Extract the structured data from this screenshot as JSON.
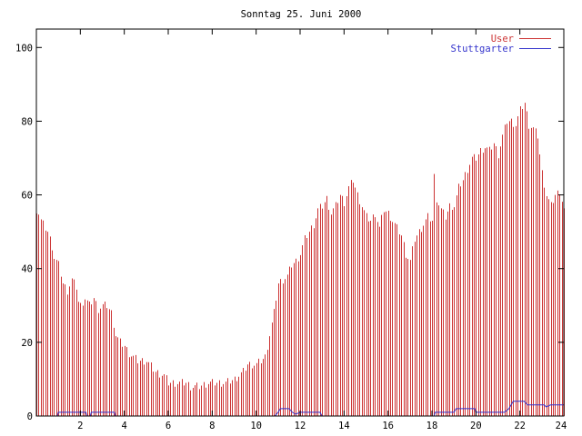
{
  "chart_data": {
    "type": "bar",
    "title": "Sonntag 25. Juni 2000",
    "xlabel": "",
    "ylabel": "",
    "xlim": [
      0,
      24
    ],
    "ylim": [
      0,
      105
    ],
    "x_ticks": [
      2,
      4,
      6,
      8,
      10,
      12,
      14,
      16,
      18,
      20,
      22,
      24
    ],
    "y_ticks": [
      0,
      20,
      40,
      60,
      80,
      100
    ],
    "grid": false,
    "legend_position": "top-right",
    "colors": {
      "User": "#cc3333",
      "Stuttgarter": "#3333cc"
    },
    "series": [
      {
        "name": "User",
        "style": "impulses",
        "step_hours": 0.1,
        "keyframes": [
          [
            0.0,
            56
          ],
          [
            0.1,
            55
          ],
          [
            0.2,
            53
          ],
          [
            0.3,
            52
          ],
          [
            0.4,
            51
          ],
          [
            0.5,
            50
          ],
          [
            0.6,
            48
          ],
          [
            0.7,
            46
          ],
          [
            0.8,
            43
          ],
          [
            0.9,
            42
          ],
          [
            1.0,
            41
          ],
          [
            1.2,
            36
          ],
          [
            1.4,
            34
          ],
          [
            1.6,
            37
          ],
          [
            1.8,
            35
          ],
          [
            1.9,
            31
          ],
          [
            2.0,
            30
          ],
          [
            2.2,
            32
          ],
          [
            2.4,
            30
          ],
          [
            2.6,
            32
          ],
          [
            2.8,
            29
          ],
          [
            3.0,
            30
          ],
          [
            3.2,
            30
          ],
          [
            3.4,
            28
          ],
          [
            3.6,
            22
          ],
          [
            3.8,
            20
          ],
          [
            4.0,
            19
          ],
          [
            4.2,
            17
          ],
          [
            4.4,
            16
          ],
          [
            4.6,
            15
          ],
          [
            5.0,
            15
          ],
          [
            5.4,
            12
          ],
          [
            5.8,
            11
          ],
          [
            6.0,
            9
          ],
          [
            6.4,
            9
          ],
          [
            6.8,
            9
          ],
          [
            7.0,
            8
          ],
          [
            7.4,
            8
          ],
          [
            7.8,
            9
          ],
          [
            8.0,
            9
          ],
          [
            8.6,
            9
          ],
          [
            9.0,
            10
          ],
          [
            9.4,
            12
          ],
          [
            9.6,
            14
          ],
          [
            10.0,
            14
          ],
          [
            10.4,
            16
          ],
          [
            10.6,
            22
          ],
          [
            10.8,
            28
          ],
          [
            11.0,
            36
          ],
          [
            11.2,
            37
          ],
          [
            11.4,
            38
          ],
          [
            11.6,
            41
          ],
          [
            11.8,
            42
          ],
          [
            12.0,
            44
          ],
          [
            12.2,
            48
          ],
          [
            12.4,
            50
          ],
          [
            12.6,
            52
          ],
          [
            12.8,
            56
          ],
          [
            13.0,
            57
          ],
          [
            13.2,
            59
          ],
          [
            13.4,
            55
          ],
          [
            13.6,
            57
          ],
          [
            13.8,
            60
          ],
          [
            14.0,
            58
          ],
          [
            14.2,
            62
          ],
          [
            14.4,
            64
          ],
          [
            14.6,
            60
          ],
          [
            14.8,
            57
          ],
          [
            15.0,
            54
          ],
          [
            15.2,
            53
          ],
          [
            15.4,
            55
          ],
          [
            15.6,
            51
          ],
          [
            15.8,
            56
          ],
          [
            16.0,
            55
          ],
          [
            16.2,
            53
          ],
          [
            16.4,
            51
          ],
          [
            16.6,
            49
          ],
          [
            16.8,
            44
          ],
          [
            17.0,
            42
          ],
          [
            17.2,
            48
          ],
          [
            17.4,
            50
          ],
          [
            17.6,
            52
          ],
          [
            17.8,
            54
          ],
          [
            18.0,
            53
          ],
          [
            18.1,
            65
          ],
          [
            18.2,
            59
          ],
          [
            18.4,
            56
          ],
          [
            18.6,
            54
          ],
          [
            18.8,
            57
          ],
          [
            19.0,
            57
          ],
          [
            19.2,
            62
          ],
          [
            19.4,
            64
          ],
          [
            19.6,
            67
          ],
          [
            19.8,
            70
          ],
          [
            20.0,
            70
          ],
          [
            20.2,
            72
          ],
          [
            20.4,
            73
          ],
          [
            20.6,
            72
          ],
          [
            20.8,
            74
          ],
          [
            21.0,
            71
          ],
          [
            21.2,
            76
          ],
          [
            21.4,
            80
          ],
          [
            21.6,
            80
          ],
          [
            21.8,
            79
          ],
          [
            22.0,
            83
          ],
          [
            22.2,
            85
          ],
          [
            22.4,
            79
          ],
          [
            22.6,
            78
          ],
          [
            22.8,
            76
          ],
          [
            23.0,
            66
          ],
          [
            23.2,
            60
          ],
          [
            23.4,
            57
          ],
          [
            23.6,
            60
          ],
          [
            23.8,
            61
          ],
          [
            24.0,
            56
          ]
        ]
      },
      {
        "name": "Stuttgarter",
        "style": "lines",
        "points": [
          [
            0.0,
            0
          ],
          [
            0.95,
            0
          ],
          [
            1.0,
            1
          ],
          [
            2.25,
            1
          ],
          [
            2.3,
            0
          ],
          [
            2.45,
            0
          ],
          [
            2.5,
            1
          ],
          [
            3.55,
            1
          ],
          [
            3.6,
            0
          ],
          [
            10.85,
            0
          ],
          [
            11.0,
            1
          ],
          [
            11.1,
            2
          ],
          [
            11.5,
            2
          ],
          [
            11.65,
            1
          ],
          [
            11.8,
            0.5
          ],
          [
            12.0,
            1
          ],
          [
            12.9,
            1
          ],
          [
            13.0,
            0
          ],
          [
            18.1,
            0
          ],
          [
            18.15,
            1
          ],
          [
            19.0,
            1
          ],
          [
            19.1,
            2
          ],
          [
            19.95,
            2
          ],
          [
            20.0,
            1
          ],
          [
            21.0,
            1
          ],
          [
            21.3,
            1
          ],
          [
            21.5,
            2
          ],
          [
            21.7,
            4
          ],
          [
            22.2,
            4
          ],
          [
            22.35,
            3
          ],
          [
            23.1,
            3
          ],
          [
            23.2,
            2.5
          ],
          [
            23.4,
            3
          ],
          [
            24.0,
            3
          ]
        ]
      }
    ]
  }
}
